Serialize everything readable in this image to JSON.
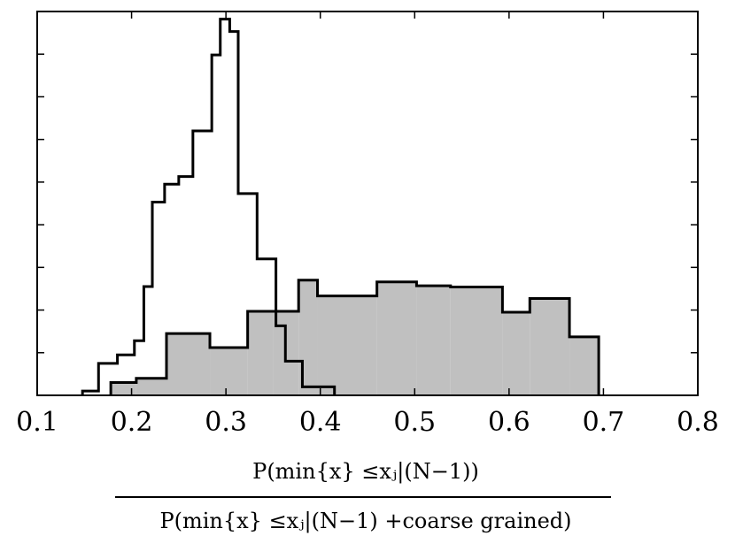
{
  "chart_data": {
    "type": "histogram",
    "xlabel": {
      "numerator": "P(min{x} ≤xⱼ|(N−1))",
      "denominator": "P(min{x} ≤xⱼ|(N−1) +coarse grained)"
    },
    "ylabel": "",
    "xlim": [
      0.1,
      0.8
    ],
    "ylim": [
      0,
      9
    ],
    "x_ticks": [
      "0.1",
      "0.2",
      "0.3",
      "0.4",
      "0.5",
      "0.6",
      "0.7",
      "0.8"
    ],
    "y_tick_count": 9,
    "grid": false,
    "series": [
      {
        "style": "step-outline",
        "color": "#000000",
        "bin_edges": [
          0.148,
          0.165,
          0.185,
          0.203,
          0.213,
          0.222,
          0.235,
          0.25,
          0.265,
          0.285,
          0.294,
          0.304,
          0.313,
          0.333,
          0.353,
          0.363,
          0.381,
          0.415
        ],
        "counts": [
          0.1,
          0.75,
          0.95,
          1.28,
          2.55,
          4.53,
          4.95,
          5.13,
          6.2,
          7.98,
          8.82,
          8.53,
          4.73,
          3.2,
          1.63,
          0.8,
          0.2
        ]
      },
      {
        "style": "filled-step",
        "color": "#c0c0c0",
        "bin_edges": [
          0.178,
          0.205,
          0.237,
          0.283,
          0.323,
          0.35,
          0.377,
          0.397,
          0.46,
          0.502,
          0.538,
          0.593,
          0.622,
          0.664,
          0.695
        ],
        "counts": [
          0.3,
          0.4,
          1.45,
          1.12,
          1.97,
          1.97,
          2.7,
          2.33,
          2.66,
          2.57,
          2.54,
          1.95,
          2.27,
          1.37
        ]
      }
    ]
  }
}
